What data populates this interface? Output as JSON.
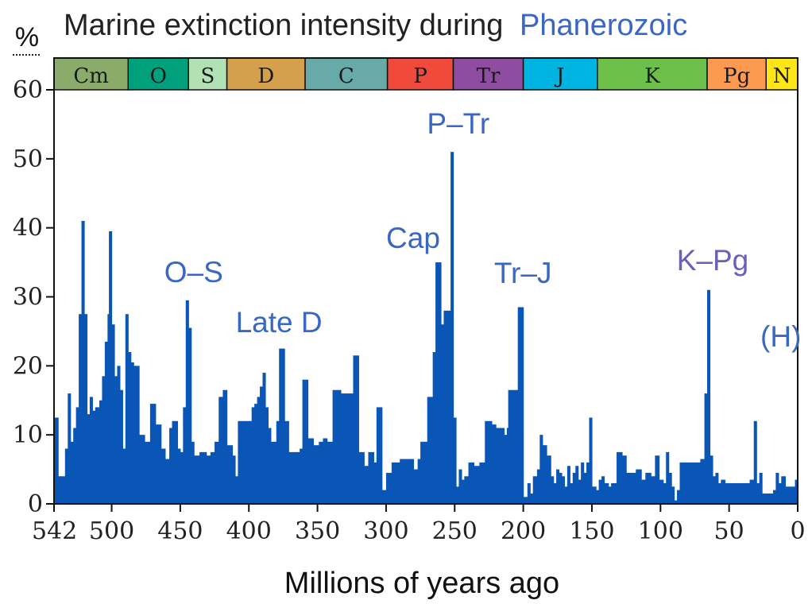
{
  "chart_data": {
    "type": "bar",
    "title": "Marine extinction intensity during",
    "title_link": "Phanerozoic",
    "xlabel": "Millions of years ago",
    "ylabel": "%",
    "xlim": [
      542,
      0
    ],
    "ylim": [
      0,
      60
    ],
    "x_ticks": [
      {
        "value": 542,
        "label": "542"
      },
      {
        "value": 500,
        "label": "500"
      },
      {
        "value": 450,
        "label": "450"
      },
      {
        "value": 400,
        "label": "400"
      },
      {
        "value": 350,
        "label": "350"
      },
      {
        "value": 300,
        "label": "300"
      },
      {
        "value": 250,
        "label": "250"
      },
      {
        "value": 200,
        "label": "200"
      },
      {
        "value": 150,
        "label": "150"
      },
      {
        "value": 100,
        "label": "100"
      },
      {
        "value": 50,
        "label": "50"
      },
      {
        "value": 0,
        "label": "0"
      }
    ],
    "y_ticks": [
      {
        "value": 0,
        "label": "0"
      },
      {
        "value": 10,
        "label": "10"
      },
      {
        "value": 20,
        "label": "20"
      },
      {
        "value": 30,
        "label": "30"
      },
      {
        "value": 40,
        "label": "40"
      },
      {
        "value": 50,
        "label": "50"
      },
      {
        "value": 60,
        "label": "60"
      }
    ],
    "periods": [
      {
        "label": "Cm",
        "start": 542,
        "end": 488,
        "color": "#8aab6a"
      },
      {
        "label": "O",
        "start": 488,
        "end": 444,
        "color": "#00a07c"
      },
      {
        "label": "S",
        "start": 444,
        "end": 416,
        "color": "#b3e1b6"
      },
      {
        "label": "D",
        "start": 416,
        "end": 359,
        "color": "#d4a04b"
      },
      {
        "label": "C",
        "start": 359,
        "end": 299,
        "color": "#67aaa7"
      },
      {
        "label": "P",
        "start": 299,
        "end": 251,
        "color": "#ef4a3c"
      },
      {
        "label": "Tr",
        "start": 251,
        "end": 200,
        "color": "#8e4da1"
      },
      {
        "label": "J",
        "start": 200,
        "end": 146,
        "color": "#00b4e2"
      },
      {
        "label": "K",
        "start": 146,
        "end": 66,
        "color": "#6cc04a"
      },
      {
        "label": "Pg",
        "start": 66,
        "end": 23,
        "color": "#fd9a52"
      },
      {
        "label": "N",
        "start": 23,
        "end": 0,
        "color": "#ffe619"
      }
    ],
    "series": [
      {
        "name": "Extinction intensity",
        "color": "#0a56b6",
        "points": [
          [
            542,
            12.5
          ],
          [
            539,
            4
          ],
          [
            534,
            8
          ],
          [
            532,
            16
          ],
          [
            530,
            9
          ],
          [
            528,
            11
          ],
          [
            526,
            14
          ],
          [
            524,
            27.5
          ],
          [
            522,
            41
          ],
          [
            520,
            27.5
          ],
          [
            518,
            13
          ],
          [
            516,
            15.5
          ],
          [
            514,
            13.5
          ],
          [
            512,
            14
          ],
          [
            509,
            15
          ],
          [
            507,
            18.5
          ],
          [
            505,
            23.5
          ],
          [
            503,
            27.5
          ],
          [
            502,
            39.5
          ],
          [
            500,
            26
          ],
          [
            498,
            18.5
          ],
          [
            496,
            20
          ],
          [
            494,
            16.5
          ],
          [
            492,
            8
          ],
          [
            490,
            27.5
          ],
          [
            488,
            22
          ],
          [
            486,
            20.5
          ],
          [
            484,
            20
          ],
          [
            480,
            10
          ],
          [
            476,
            9
          ],
          [
            472,
            14.5
          ],
          [
            468,
            11.5
          ],
          [
            464,
            8
          ],
          [
            461,
            6.5
          ],
          [
            458,
            11
          ],
          [
            456,
            12
          ],
          [
            452,
            8
          ],
          [
            450,
            7.5
          ],
          [
            448,
            14
          ],
          [
            446,
            29.5
          ],
          [
            444,
            25.5
          ],
          [
            442,
            9
          ],
          [
            440,
            7
          ],
          [
            436,
            7.5
          ],
          [
            431,
            7
          ],
          [
            428,
            7.5
          ],
          [
            425,
            9
          ],
          [
            422,
            15.5
          ],
          [
            419,
            16.5
          ],
          [
            416,
            8.5
          ],
          [
            412,
            7
          ],
          [
            410,
            4
          ],
          [
            408,
            12
          ],
          [
            400,
            12
          ],
          [
            398,
            14
          ],
          [
            396,
            14.5
          ],
          [
            394,
            15.5
          ],
          [
            392,
            17
          ],
          [
            390,
            19
          ],
          [
            388,
            14
          ],
          [
            386,
            11
          ],
          [
            384,
            9
          ],
          [
            380,
            12
          ],
          [
            378,
            22.5
          ],
          [
            374,
            12
          ],
          [
            371,
            7.5
          ],
          [
            367,
            7.5
          ],
          [
            363,
            8
          ],
          [
            361,
            18
          ],
          [
            357,
            9.5
          ],
          [
            353,
            8.5
          ],
          [
            349,
            9
          ],
          [
            346,
            9.5
          ],
          [
            343,
            9
          ],
          [
            339,
            16.5
          ],
          [
            333,
            16
          ],
          [
            327,
            16
          ],
          [
            324,
            21.5
          ],
          [
            320,
            7.5
          ],
          [
            316,
            5.5
          ],
          [
            313,
            7.5
          ],
          [
            309,
            6
          ],
          [
            307,
            14
          ],
          [
            303,
            2
          ],
          [
            300,
            4.5
          ],
          [
            296,
            6
          ],
          [
            290,
            6.5
          ],
          [
            283,
            6.5
          ],
          [
            280,
            5
          ],
          [
            277,
            6.5
          ],
          [
            275,
            9
          ],
          [
            270,
            15.5
          ],
          [
            266,
            22
          ],
          [
            264,
            35
          ],
          [
            260,
            26
          ],
          [
            258,
            28
          ],
          [
            255,
            28
          ],
          [
            253,
            51
          ],
          [
            251,
            12.5
          ],
          [
            249,
            2.5
          ],
          [
            247,
            5
          ],
          [
            245,
            3.5
          ],
          [
            243,
            4
          ],
          [
            240,
            6
          ],
          [
            236,
            5.5
          ],
          [
            232,
            6
          ],
          [
            228,
            12
          ],
          [
            223,
            11.5
          ],
          [
            220,
            11
          ],
          [
            214,
            10
          ],
          [
            212,
            11
          ],
          [
            211,
            16.5
          ],
          [
            204,
            28.5
          ],
          [
            200,
            1
          ],
          [
            197,
            3
          ],
          [
            195,
            1.5
          ],
          [
            193,
            4
          ],
          [
            190,
            5
          ],
          [
            188,
            10
          ],
          [
            186,
            8.5
          ],
          [
            183,
            7
          ],
          [
            180,
            4
          ],
          [
            178,
            3
          ],
          [
            176,
            5
          ],
          [
            174,
            4.5
          ],
          [
            172,
            4
          ],
          [
            170,
            2.5
          ],
          [
            168,
            5.5
          ],
          [
            166,
            3
          ],
          [
            164,
            4.5
          ],
          [
            162,
            5.5
          ],
          [
            160,
            3.5
          ],
          [
            158,
            6
          ],
          [
            156,
            4.5
          ],
          [
            154,
            6
          ],
          [
            152,
            12.5
          ],
          [
            150,
            2.5
          ],
          [
            147,
            2
          ],
          [
            145,
            3.5
          ],
          [
            143,
            4
          ],
          [
            141,
            3
          ],
          [
            138,
            2.5
          ],
          [
            136,
            3
          ],
          [
            132,
            7.5
          ],
          [
            128,
            7
          ],
          [
            125,
            4.5
          ],
          [
            118,
            5
          ],
          [
            114,
            3.5
          ],
          [
            111,
            4.5
          ],
          [
            107,
            4
          ],
          [
            104,
            7
          ],
          [
            101,
            3.5
          ],
          [
            98,
            3
          ],
          [
            96,
            7.5
          ],
          [
            94,
            4.5
          ],
          [
            92,
            2.5
          ],
          [
            90,
            0.5
          ],
          [
            88,
            2
          ],
          [
            86,
            6
          ],
          [
            81,
            6
          ],
          [
            78,
            6
          ],
          [
            75,
            6
          ],
          [
            71,
            6.5
          ],
          [
            68,
            16
          ],
          [
            66,
            31
          ],
          [
            64,
            7
          ],
          [
            62,
            4
          ],
          [
            60,
            4.5
          ],
          [
            58,
            3
          ],
          [
            56,
            3.5
          ],
          [
            53,
            3
          ],
          [
            45,
            3
          ],
          [
            35,
            3.5
          ],
          [
            32,
            12
          ],
          [
            30,
            3
          ],
          [
            28,
            4.5
          ],
          [
            26,
            1.5
          ],
          [
            23,
            1.5
          ],
          [
            18,
            2
          ],
          [
            16,
            4.5
          ],
          [
            14,
            3
          ],
          [
            12,
            4
          ],
          [
            9,
            2.5
          ],
          [
            4,
            2.5
          ],
          [
            2,
            3.5
          ],
          [
            0,
            3.5
          ]
        ]
      }
    ],
    "annotations": [
      {
        "text": "O–S",
        "x": 446,
        "color": "#3a66c4"
      },
      {
        "text": "Late D",
        "x": 374,
        "color": "#3a66c4"
      },
      {
        "text": "Cap",
        "x": 260,
        "color": "#3a66c4"
      },
      {
        "text": "P–Tr",
        "x": 252,
        "color": "#3a66c4"
      },
      {
        "text": "Tr–J",
        "x": 202,
        "color": "#3a66c4"
      },
      {
        "text": "K–Pg",
        "x": 66,
        "color": "#6c5fb8"
      },
      {
        "text": "(H)",
        "x": 10,
        "color": "#3a66c4"
      }
    ],
    "colors": {
      "bars": "#0a56b6",
      "title": "#222222",
      "title_link": "#3a66c4"
    }
  }
}
